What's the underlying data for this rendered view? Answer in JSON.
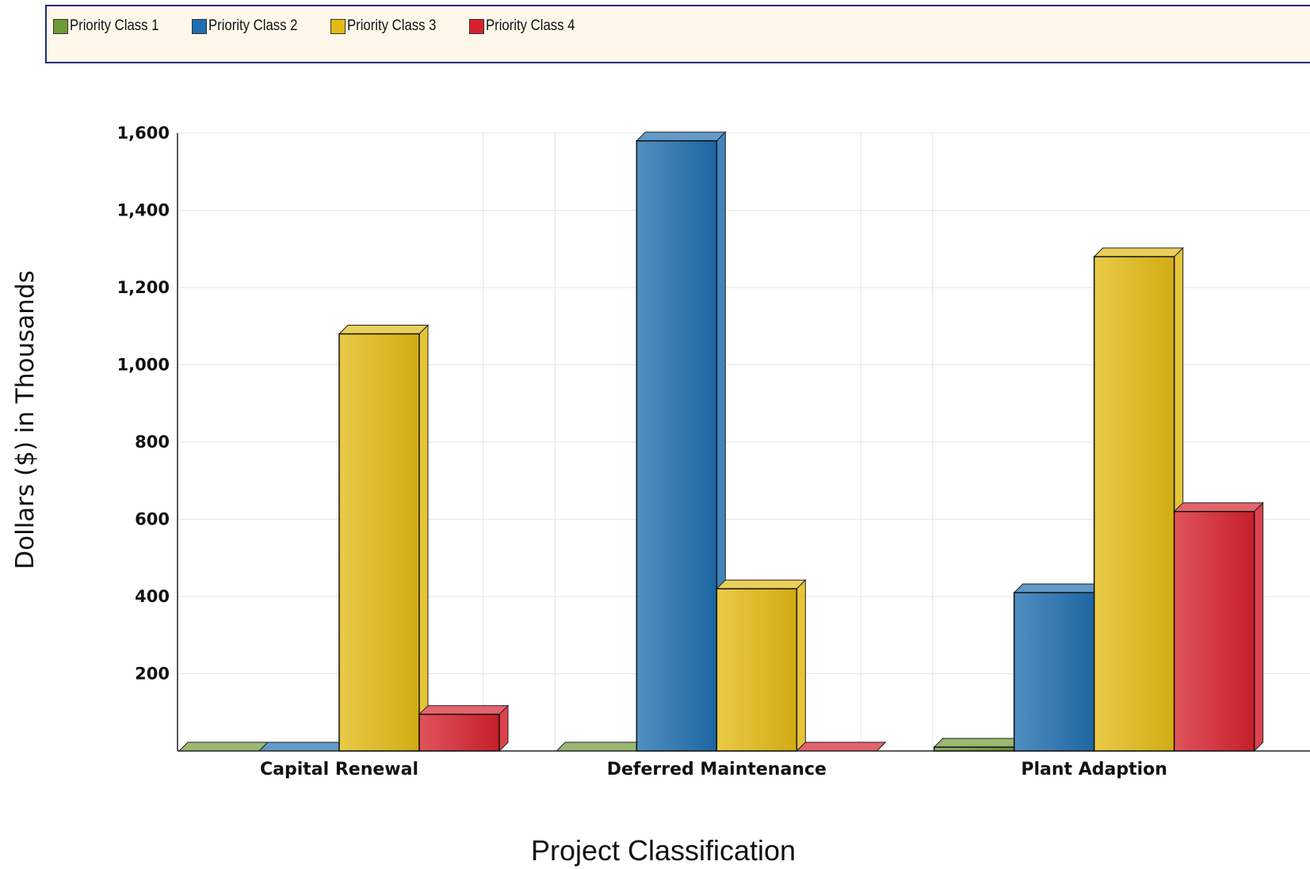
{
  "legend": {
    "items": [
      {
        "label": "Priority Class 1",
        "color": "#6e9a36"
      },
      {
        "label": "Priority Class 2",
        "color": "#1f6fb0"
      },
      {
        "label": "Priority Class 3",
        "color": "#e3bb14"
      },
      {
        "label": "Priority Class 4",
        "color": "#d7222e"
      }
    ]
  },
  "chart_data": {
    "type": "bar",
    "style": "3d-clustered",
    "title": "",
    "xlabel": "Project Classification",
    "ylabel": "Dollars ($) in Thousands",
    "ylim": [
      0,
      1600
    ],
    "yticks": [
      200,
      400,
      600,
      800,
      1000,
      1200,
      1400,
      1600
    ],
    "ytick_labels": [
      "200",
      "400",
      "600",
      "800",
      "1,000",
      "1,200",
      "1,400",
      "1,600"
    ],
    "grid": true,
    "legend_position": "top",
    "categories": [
      "Capital Renewal",
      "Deferred Maintenance",
      "Plant Adaption"
    ],
    "series": [
      {
        "name": "Priority Class 1",
        "color": "#6e9a36",
        "values": [
          0,
          0,
          10
        ]
      },
      {
        "name": "Priority Class 2",
        "color": "#1f6fb0",
        "values": [
          0,
          1580,
          410
        ]
      },
      {
        "name": "Priority Class 3",
        "color": "#e3bb14",
        "values": [
          1080,
          420,
          1280
        ]
      },
      {
        "name": "Priority Class 4",
        "color": "#d7222e",
        "values": [
          95,
          0,
          620
        ]
      }
    ]
  }
}
